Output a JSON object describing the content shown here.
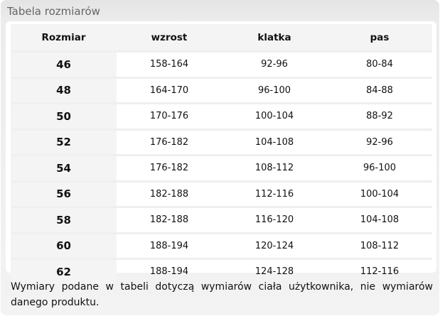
{
  "title": "Tabela rozmiarów",
  "table": {
    "headers": [
      "Rozmiar",
      "wzrost",
      "klatka",
      "pas"
    ],
    "rows": [
      [
        "46",
        "158-164",
        "92-96",
        "80-84"
      ],
      [
        "48",
        "164-170",
        "96-100",
        "84-88"
      ],
      [
        "50",
        "170-176",
        "100-104",
        "88-92"
      ],
      [
        "52",
        "176-182",
        "104-108",
        "92-96"
      ],
      [
        "54",
        "176-182",
        "108-112",
        "96-100"
      ],
      [
        "56",
        "182-188",
        "112-116",
        "100-104"
      ],
      [
        "58",
        "182-188",
        "116-120",
        "104-108"
      ],
      [
        "60",
        "188-194",
        "120-124",
        "108-112"
      ],
      [
        "62",
        "188-194",
        "124-128",
        "112-116"
      ]
    ]
  },
  "note": "Wymiary podane w tabeli dotyczą wymiarów ciała użytkownika, nie wymiarów danego produktu."
}
